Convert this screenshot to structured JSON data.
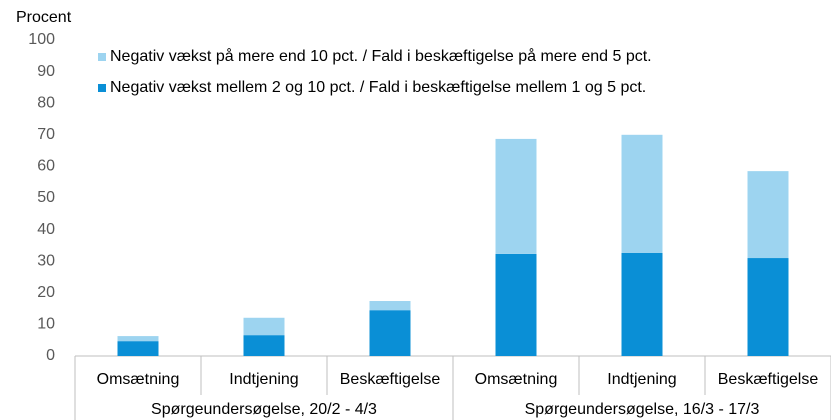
{
  "chart_data": {
    "type": "stacked_bar",
    "y_label": "Procent",
    "categories": [
      "Omsætning",
      "Indtjening",
      "Beskæftigelse",
      "Omsætning",
      "Indtjening",
      "Beskæftigelse"
    ],
    "groups": [
      "Spørgeundersøgelse, 20/2 - 4/3",
      "Spørgeundersøgelse, 16/3 - 17/3"
    ],
    "series": [
      {
        "name": "Negativ vækst mellem 2 og 10 pct. / Fald i beskæftigelse mellem 1 og 5 pct.",
        "color": "#0a8fd6",
        "values": [
          4.7,
          6.6,
          14.5,
          32.3,
          32.6,
          31
        ]
      },
      {
        "name": "Negativ vækst på mere end 10 pct. / Fald i  beskæftigelse på mere end 5 pct.",
        "color": "#9dd4f0",
        "values": [
          1.6,
          5.5,
          2.9,
          36.4,
          37.4,
          27.5
        ]
      }
    ],
    "ylim": [
      0,
      100
    ],
    "yticks": [
      0,
      10,
      20,
      30,
      40,
      50,
      60,
      70,
      80,
      90,
      100
    ],
    "grid": false
  }
}
